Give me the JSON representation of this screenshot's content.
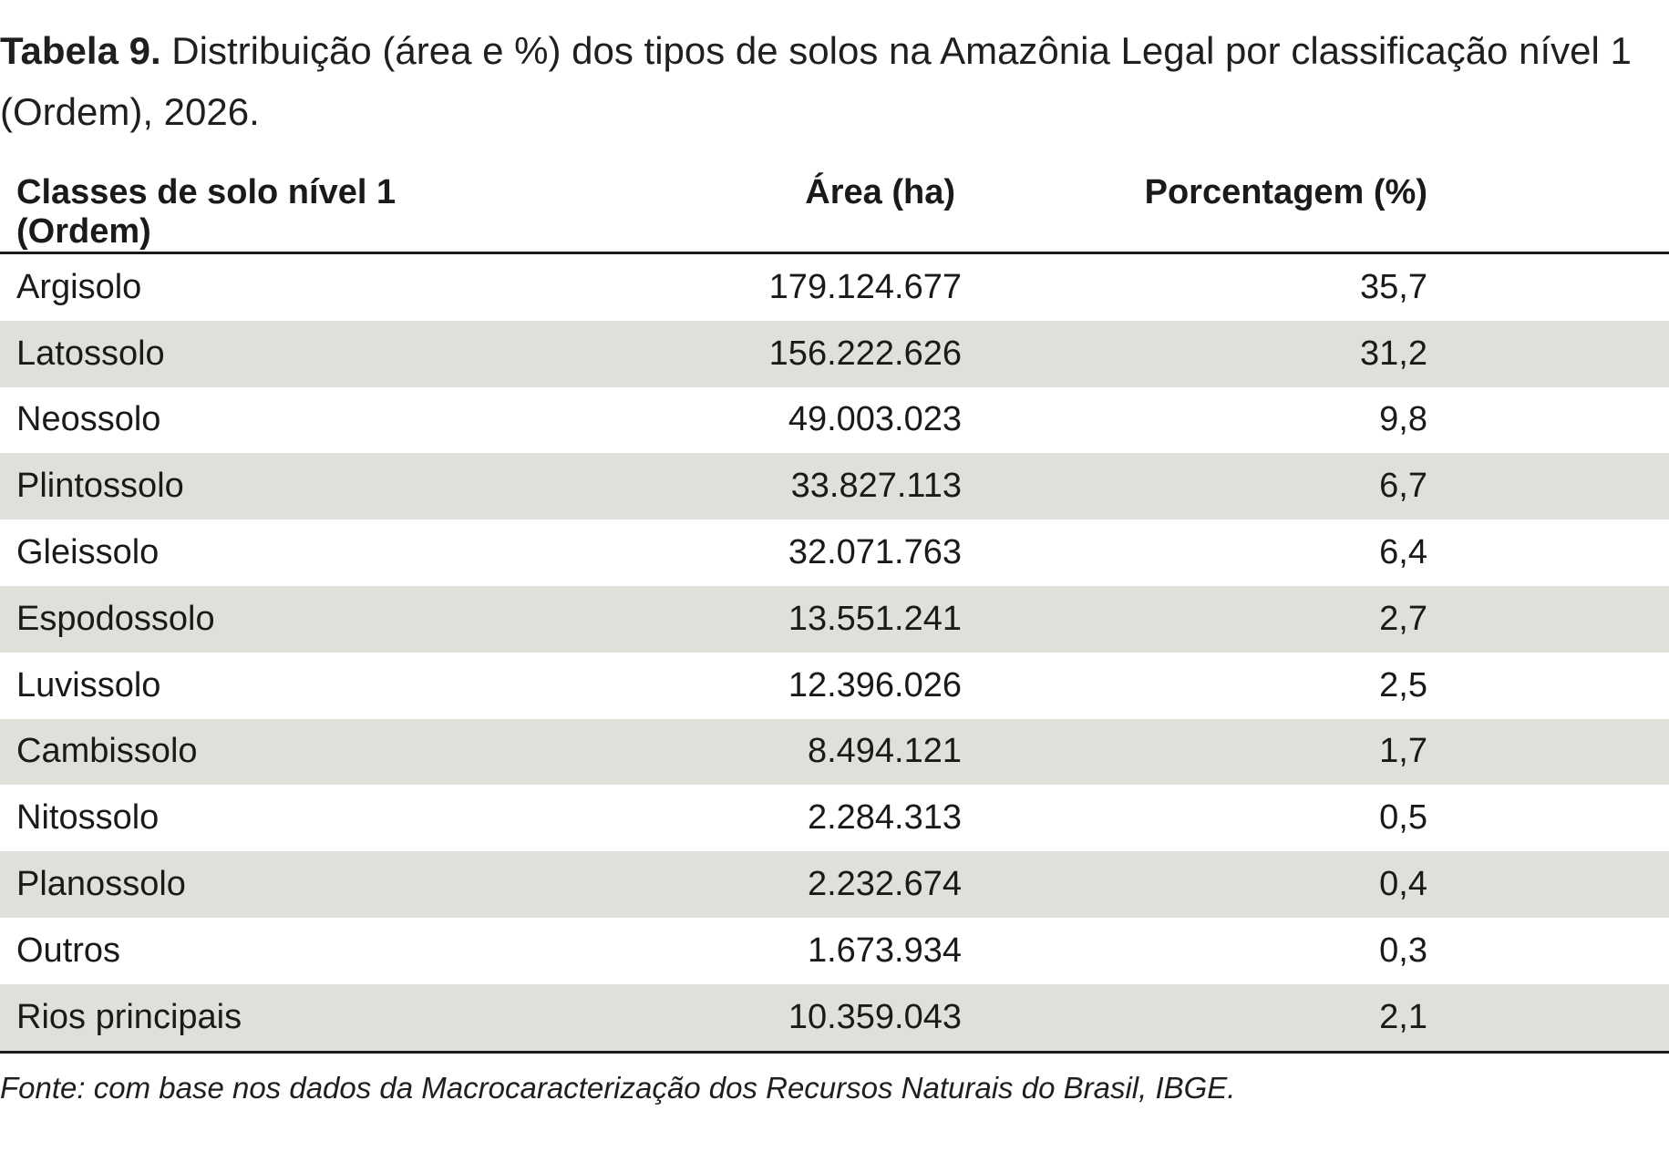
{
  "caption": {
    "label": "Tabela 9.",
    "text": " Distribuição (área e %) dos tipos de solos na Amazônia Legal por classificação nível 1 (Ordem), 2026."
  },
  "table": {
    "headers": [
      "Classes de solo nível 1 (Ordem)",
      "Área (ha)",
      "Porcentagem (%)"
    ],
    "rows": [
      [
        "Argisolo",
        "179.124.677",
        "35,7"
      ],
      [
        "Latossolo",
        "156.222.626",
        "31,2"
      ],
      [
        "Neossolo",
        "49.003.023",
        "9,8"
      ],
      [
        "Plintossolo",
        "33.827.113",
        "6,7"
      ],
      [
        "Gleissolo",
        "32.071.763",
        "6,4"
      ],
      [
        "Espodossolo",
        "13.551.241",
        "2,7"
      ],
      [
        "Luvissolo",
        "12.396.026",
        "2,5"
      ],
      [
        "Cambissolo",
        "8.494.121",
        "1,7"
      ],
      [
        "Nitossolo",
        "2.284.313",
        "0,5"
      ],
      [
        "Planossolo",
        "2.232.674",
        "0,4"
      ],
      [
        "Outros",
        "1.673.934",
        "0,3"
      ],
      [
        "Rios principais",
        "10.359.043",
        "2,1"
      ]
    ]
  },
  "source": "Fonte: com base nos dados da Macrocaracterização dos Recursos Naturais do Brasil, IBGE.",
  "colors": {
    "row_shade": "#e1dfda",
    "rule": "#1a1a1a",
    "text": "#1a1a1a"
  }
}
